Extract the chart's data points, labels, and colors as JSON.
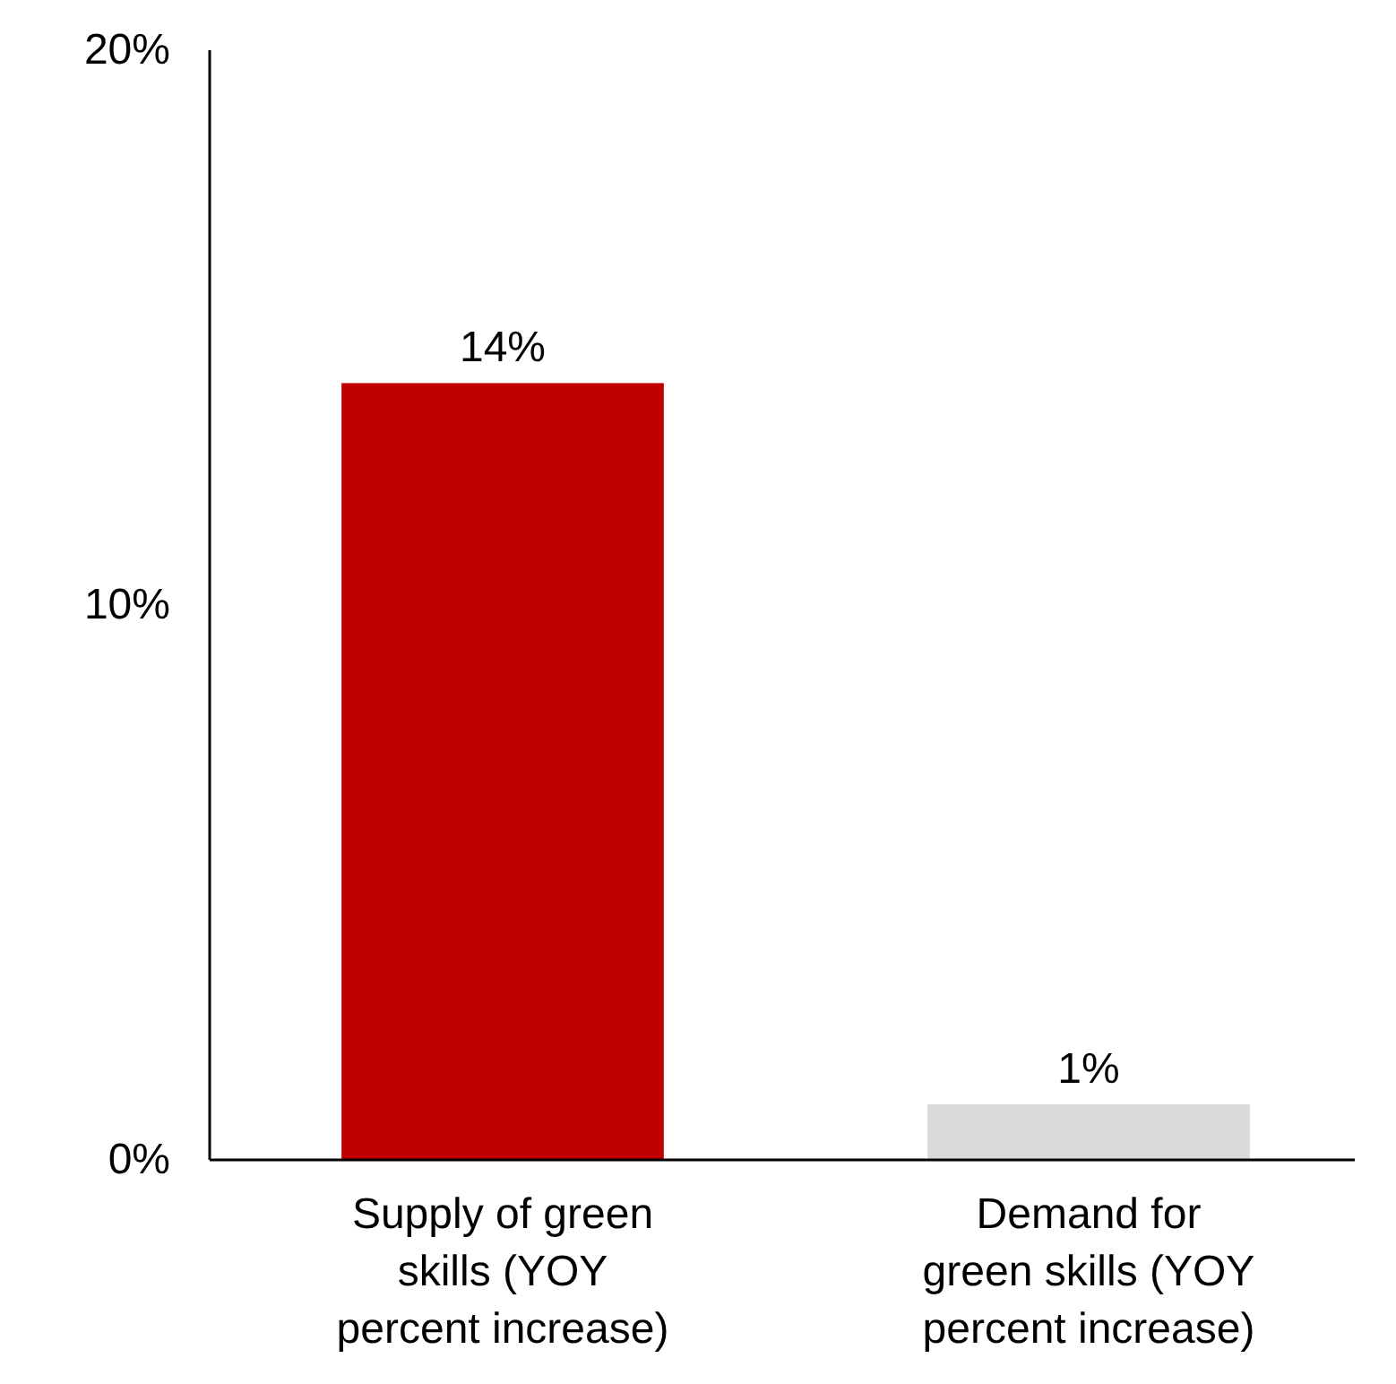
{
  "chart_data": {
    "type": "bar",
    "categories": [
      "Supply of green\nskills (YOY\npercent increase)",
      "Demand for\ngreen skills (YOY\npercent increase)"
    ],
    "values": [
      14,
      1
    ],
    "colors": [
      "#c00000",
      "#d9d9d9"
    ],
    "value_labels": [
      "14%",
      "1%"
    ],
    "ylim": [
      0,
      20
    ],
    "yticks": [
      {
        "value": 0,
        "label": "0%"
      },
      {
        "value": 10,
        "label": "10%"
      },
      {
        "value": 20,
        "label": "20%"
      }
    ],
    "grid": false
  }
}
